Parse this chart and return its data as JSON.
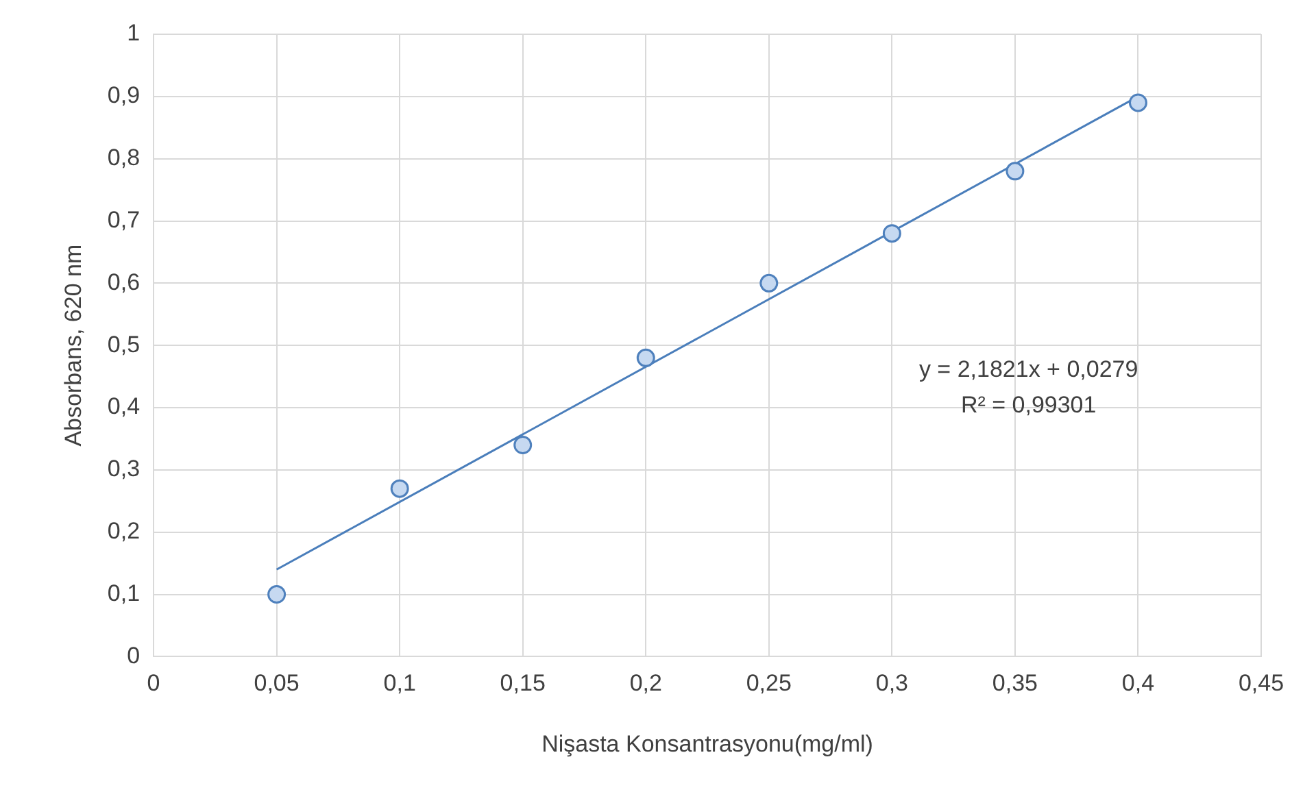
{
  "chart_data": {
    "type": "scatter",
    "xlabel": "Nişasta Konsantrasyonu(mg/ml)",
    "ylabel": "Absorbans, 620 nm",
    "x": [
      0.05,
      0.1,
      0.15,
      0.2,
      0.25,
      0.3,
      0.35,
      0.4
    ],
    "series": [
      {
        "color": "#4f81bd",
        "marker": "circle",
        "values": [
          0.1,
          0.27,
          0.34,
          0.48,
          0.6,
          0.68,
          0.78,
          0.89
        ]
      },
      {
        "type": "line",
        "marker": "none",
        "color": "#4a7ebb",
        "x": [
          0.05,
          0.4
        ],
        "values": [
          0.14,
          0.9
        ]
      }
    ],
    "xlim": [
      0,
      0.45
    ],
    "xticks": [
      0,
      {
        "value": 0.05,
        "label": "0,05"
      },
      {
        "value": 0.1,
        "label": "0,1"
      },
      {
        "value": 0.15,
        "label": "0,15"
      },
      {
        "value": 0.2,
        "label": "0,2"
      },
      {
        "value": 0.25,
        "label": "0,25"
      },
      {
        "value": 0.3,
        "label": "0,3"
      },
      {
        "value": 0.35,
        "label": "0,35"
      },
      {
        "value": 0.4,
        "label": "0,4"
      },
      {
        "value": 0.45,
        "label": "0,45"
      }
    ],
    "ylim": [
      0,
      1
    ],
    "yticks": [
      0,
      {
        "value": 0.1,
        "label": "0,1"
      },
      {
        "value": 0.2,
        "label": "0,2"
      },
      {
        "value": 0.3,
        "label": "0,3"
      },
      {
        "value": 0.4,
        "label": "0,4"
      },
      {
        "value": 0.5,
        "label": "0,5"
      },
      {
        "value": 0.6,
        "label": "0,6"
      },
      {
        "value": 0.7,
        "label": "0,7"
      },
      {
        "value": 0.8,
        "label": "0,8"
      },
      {
        "value": 0.9,
        "label": "0,9"
      },
      1
    ],
    "annotations": [
      "y = 2,1821x + 0,0279",
      "R² = 0,99301"
    ],
    "grid": true,
    "legend": false
  }
}
